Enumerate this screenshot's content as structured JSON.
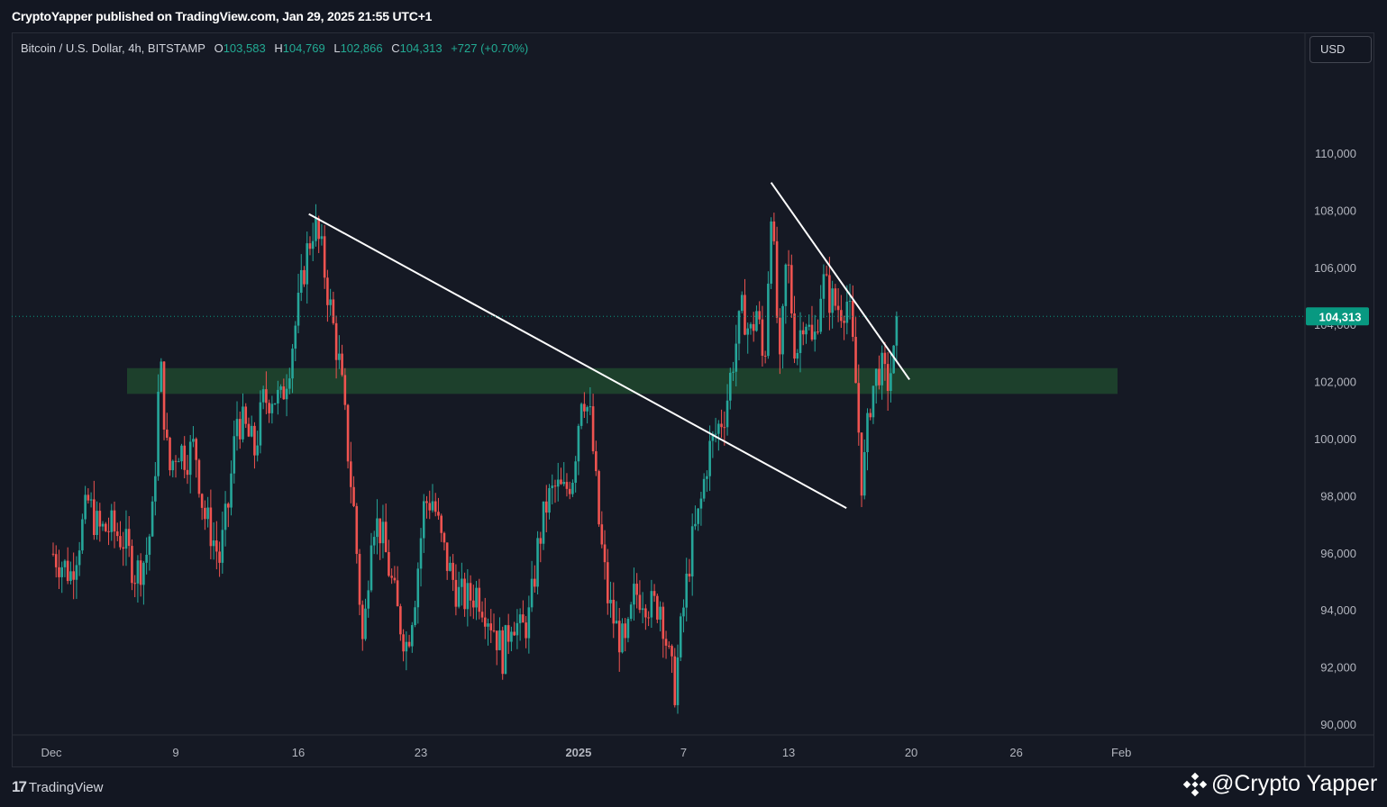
{
  "header": {
    "published_line": "CryptoYapper published on TradingView.com, Jan 29, 2025 21:55 UTC+1"
  },
  "legend": {
    "symbol": "Bitcoin / U.S. Dollar, 4h, BITSTAMP",
    "open_label": "O",
    "open": "103,583",
    "high_label": "H",
    "high": "104,769",
    "low_label": "L",
    "low": "102,866",
    "close_label": "C",
    "close": "104,313",
    "change": "+727 (+0.70%)"
  },
  "currency": "USD",
  "footer": {
    "brand": "TradingView",
    "watermark": "@Crypto Yapper"
  },
  "colors": {
    "background": "#131722",
    "up": "#26a69a",
    "down": "#ef5350",
    "zone": "#1f4a2e",
    "trendline": "#ffffff",
    "price_tag": "#089981"
  },
  "chart_data": {
    "type": "candlestick",
    "interval": "4h",
    "ylim": [
      88500,
      111000
    ],
    "y_ticks": [
      "110,000",
      "108,000",
      "106,000",
      "104,000",
      "102,000",
      "100,000",
      "98,000",
      "96,000",
      "94,000",
      "92,000",
      "90,000"
    ],
    "x_ticks": [
      "Dec",
      "9",
      "16",
      "23",
      "2025",
      "7",
      "13",
      "20",
      "26",
      "Feb"
    ],
    "last_price": "104,313",
    "close_path": [
      {
        "t": 0,
        "p": 96000
      },
      {
        "t": 1,
        "p": 95300
      },
      {
        "t": 2,
        "p": 97800
      },
      {
        "t": 2.6,
        "p": 96800
      },
      {
        "t": 3.3,
        "p": 96900
      },
      {
        "t": 4,
        "p": 96500
      },
      {
        "t": 4.7,
        "p": 95300
      },
      {
        "t": 5.3,
        "p": 95900
      },
      {
        "t": 5.7,
        "p": 97400
      },
      {
        "t": 6.1,
        "p": 102800
      },
      {
        "t": 6.6,
        "p": 98800
      },
      {
        "t": 7.1,
        "p": 99800
      },
      {
        "t": 7.6,
        "p": 99400
      },
      {
        "t": 8.1,
        "p": 99800
      },
      {
        "t": 8.6,
        "p": 97400
      },
      {
        "t": 9,
        "p": 96800
      },
      {
        "t": 9.5,
        "p": 95800
      },
      {
        "t": 10,
        "p": 97700
      },
      {
        "t": 10.5,
        "p": 100800
      },
      {
        "t": 11,
        "p": 100300
      },
      {
        "t": 11.5,
        "p": 99600
      },
      {
        "t": 12,
        "p": 101300
      },
      {
        "t": 12.5,
        "p": 101600
      },
      {
        "t": 13,
        "p": 101300
      },
      {
        "t": 13.5,
        "p": 102800
      },
      {
        "t": 14,
        "p": 104600
      },
      {
        "t": 14.4,
        "p": 106300
      },
      {
        "t": 14.9,
        "p": 107600
      },
      {
        "t": 15.4,
        "p": 106300
      },
      {
        "t": 15.9,
        "p": 104300
      },
      {
        "t": 16.4,
        "p": 102400
      },
      {
        "t": 16.8,
        "p": 99800
      },
      {
        "t": 17.2,
        "p": 97300
      },
      {
        "t": 17.7,
        "p": 92600
      },
      {
        "t": 18.2,
        "p": 97300
      },
      {
        "t": 18.7,
        "p": 96800
      },
      {
        "t": 19.2,
        "p": 95400
      },
      {
        "t": 19.7,
        "p": 93800
      },
      {
        "t": 20.2,
        "p": 92800
      },
      {
        "t": 20.7,
        "p": 94800
      },
      {
        "t": 21.2,
        "p": 97800
      },
      {
        "t": 21.7,
        "p": 97900
      },
      {
        "t": 22.2,
        "p": 96300
      },
      {
        "t": 22.7,
        "p": 95300
      },
      {
        "t": 23.2,
        "p": 94500
      },
      {
        "t": 23.7,
        "p": 94400
      },
      {
        "t": 24.2,
        "p": 94700
      },
      {
        "t": 24.7,
        "p": 94100
      },
      {
        "t": 25.2,
        "p": 93400
      },
      {
        "t": 25.7,
        "p": 92400
      },
      {
        "t": 26.2,
        "p": 93900
      },
      {
        "t": 26.7,
        "p": 93200
      },
      {
        "t": 27.2,
        "p": 93800
      },
      {
        "t": 27.7,
        "p": 96300
      },
      {
        "t": 28.2,
        "p": 97800
      },
      {
        "t": 28.7,
        "p": 98300
      },
      {
        "t": 29.2,
        "p": 98100
      },
      {
        "t": 29.7,
        "p": 98900
      },
      {
        "t": 30.2,
        "p": 101900
      },
      {
        "t": 30.7,
        "p": 100600
      },
      {
        "t": 31.2,
        "p": 96800
      },
      {
        "t": 31.7,
        "p": 94300
      },
      {
        "t": 32.2,
        "p": 93300
      },
      {
        "t": 32.7,
        "p": 92600
      },
      {
        "t": 33.2,
        "p": 94600
      },
      {
        "t": 33.7,
        "p": 94600
      },
      {
        "t": 34.2,
        "p": 94100
      },
      {
        "t": 34.7,
        "p": 94300
      },
      {
        "t": 35.2,
        "p": 92100
      },
      {
        "t": 35.5,
        "p": 91300
      },
      {
        "t": 35.9,
        "p": 93600
      },
      {
        "t": 36.4,
        "p": 96100
      },
      {
        "t": 36.9,
        "p": 97400
      },
      {
        "t": 37.4,
        "p": 99500
      },
      {
        "t": 37.9,
        "p": 100300
      },
      {
        "t": 38.4,
        "p": 101100
      },
      {
        "t": 38.9,
        "p": 103100
      },
      {
        "t": 39.4,
        "p": 104600
      },
      {
        "t": 39.8,
        "p": 103600
      },
      {
        "t": 40.2,
        "p": 104600
      },
      {
        "t": 40.6,
        "p": 102300
      },
      {
        "t": 41,
        "p": 108300
      },
      {
        "t": 41.5,
        "p": 102300
      },
      {
        "t": 41.9,
        "p": 106600
      },
      {
        "t": 42.4,
        "p": 102900
      },
      {
        "t": 42.9,
        "p": 104600
      },
      {
        "t": 43.4,
        "p": 103100
      },
      {
        "t": 43.9,
        "p": 105600
      },
      {
        "t": 44.4,
        "p": 104900
      },
      {
        "t": 44.9,
        "p": 104600
      },
      {
        "t": 45.4,
        "p": 104900
      },
      {
        "t": 45.8,
        "p": 102300
      },
      {
        "t": 46.2,
        "p": 98300
      },
      {
        "t": 46.7,
        "p": 101600
      },
      {
        "t": 47.2,
        "p": 102600
      },
      {
        "t": 47.6,
        "p": 101900
      },
      {
        "t": 48.0,
        "p": 102800
      },
      {
        "t": 48.3,
        "p": 104313
      }
    ],
    "support_zone": {
      "low": 101600,
      "high": 102500
    },
    "trendlines": [
      {
        "x1": 14.6,
        "y1": 107900,
        "x2": 45.3,
        "y2": 97600
      },
      {
        "x1": 41.0,
        "y1": 109000,
        "x2": 48.9,
        "y2": 102100
      }
    ]
  }
}
